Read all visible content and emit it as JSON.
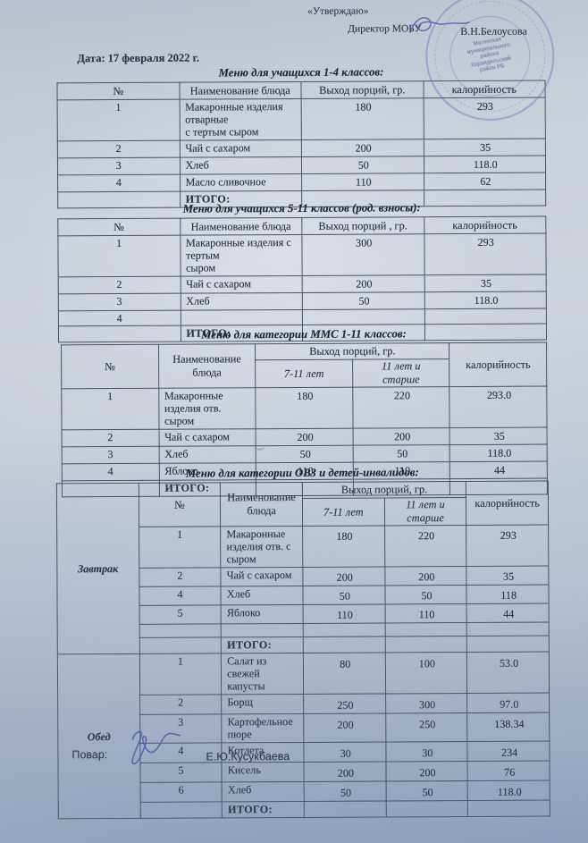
{
  "document": {
    "approval_label": "«Утверждаю»",
    "director_label": "Директор МОБУ",
    "director_name": "В.Н.Белоусова",
    "stamp_lines": [
      "Магинская",
      "муниципального",
      "района",
      "Караидельский",
      "район РБ"
    ],
    "date_line": "Дата: 17 февраля 2022 г.",
    "cook_label": "Повар:",
    "cook_name": "Е.Ю.Кусукбаева"
  },
  "colors": {
    "stamp_ink": "#5f66be",
    "pen_ink": "#4d58ae",
    "text_ink": "#2a3040",
    "table_border": "#4a5162",
    "paper": "#c9cfd9"
  },
  "tables": [
    {
      "type": "simple",
      "title": "Меню для учащихся 1-4 классов:",
      "headers": {
        "num": "№",
        "dish": "Наименование блюда",
        "portion": "Выход порций, гр.",
        "cal": "калорийность"
      },
      "rows": [
        [
          "1",
          "Макаронные изделия отварные\nс тертым сыром",
          "180",
          "293"
        ],
        [
          "2",
          "Чай с сахаром",
          "200",
          "35"
        ],
        [
          "3",
          "Хлеб",
          "50",
          "118.0"
        ],
        [
          "4",
          "Масло сливочное",
          "110",
          "62"
        ],
        [
          "",
          "ИТОГО:",
          "",
          ""
        ]
      ]
    },
    {
      "type": "simple",
      "title": "Меню для учащихся 5-11 классов (род. взносы):",
      "headers": {
        "num": "№",
        "dish": "Наименование блюда",
        "portion": "Выход порций , гр.",
        "cal": "калорийность"
      },
      "rows": [
        [
          "1",
          "Макаронные изделия с тертым\nсыром",
          "300",
          "293"
        ],
        [
          "2",
          "Чай с сахаром",
          "200",
          "35"
        ],
        [
          "3",
          "Хлеб",
          "50",
          "118.0"
        ],
        [
          "4",
          "",
          "",
          ""
        ],
        [
          "",
          "ИТОГО:",
          "",
          ""
        ]
      ]
    },
    {
      "type": "split",
      "title": "Меню для категории ММС 1-11 классов:",
      "headers": {
        "num": "№",
        "dish": "Наименование блюда",
        "portion": "Выход порций, гр.",
        "age1": "7-11 лет",
        "age2": "11 лет и\nстарше",
        "cal": "калорийность"
      },
      "rows": [
        [
          "1",
          "Макаронные изделия отв. сыром",
          "180",
          "220",
          "293.0"
        ],
        [
          "2",
          "Чай с сахаром",
          "200",
          "200",
          "35"
        ],
        [
          "3",
          "Хлеб",
          "50",
          "50",
          "118.0"
        ],
        [
          "4",
          "Яблоко",
          "110",
          "110",
          "44"
        ],
        [
          "",
          "ИТОГО:",
          "",
          "",
          ""
        ]
      ]
    },
    {
      "type": "grouped",
      "title": "Меню для категории ОВЗ и детей-инвалидов:",
      "headers": {
        "num": "№",
        "dish": "Наименование блюда",
        "portion": "Выход порций, гр.",
        "age1": "7-11 лет",
        "age2": "11 лет и\nстарше",
        "cal": "калорийность"
      },
      "sections": [
        {
          "label": "Завтрак",
          "rows": [
            [
              "1",
              "Макаронные изделия отв. с\nсыром",
              "180",
              "220",
              "293"
            ],
            [
              "2",
              "Чай с сахаром",
              "200",
              "200",
              "35"
            ],
            [
              "4",
              "Хлеб",
              "50",
              "50",
              "118"
            ],
            [
              "5",
              "Яблоко",
              "110",
              "110",
              "44"
            ],
            [
              "",
              "",
              "",
              "",
              ""
            ],
            [
              "",
              "ИТОГО:",
              "",
              "",
              ""
            ]
          ]
        },
        {
          "label": "Обед",
          "rows": [
            [
              "1",
              "Салат из свежей капусты",
              "80",
              "100",
              "53.0"
            ],
            [
              "2",
              "Борщ",
              "250",
              "300",
              "97.0"
            ],
            [
              "3",
              "Картофельное пюре",
              "200",
              "250",
              "138.34"
            ],
            [
              "4",
              "Котлета",
              "30",
              "30",
              "234"
            ],
            [
              "5",
              "Кисель",
              "200",
              "200",
              "76"
            ],
            [
              "6",
              "Хлеб",
              "50",
              "50",
              "118.0"
            ],
            [
              "",
              "ИТОГО:",
              "",
              "",
              ""
            ]
          ]
        }
      ]
    }
  ]
}
